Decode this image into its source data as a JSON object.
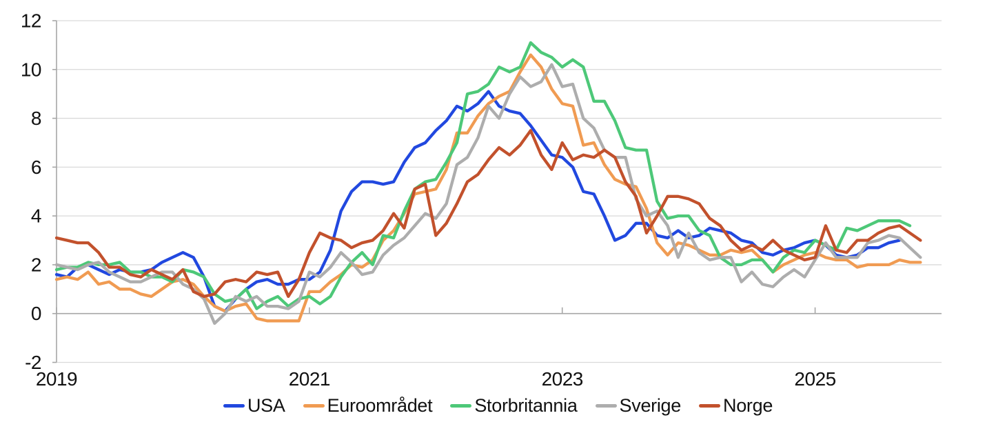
{
  "figure": {
    "background": "#ffffff",
    "grid_color": "#d9d9d9",
    "axis_color": "#a6a6a6",
    "text_color": "#111111"
  },
  "chart_data": {
    "type": "line",
    "title": "",
    "xlabel": "",
    "ylabel": "",
    "x_unit": "month",
    "x_start": "2019-01",
    "x_total_months": 84,
    "ylim": [
      -2,
      12
    ],
    "grid": "horizontal",
    "zero_axis_emphasized": true,
    "legend_position": "bottom-center",
    "y_ticks": [
      -2,
      0,
      2,
      4,
      6,
      8,
      10,
      12
    ],
    "x_ticks": [
      {
        "label": "2019",
        "month": 0
      },
      {
        "label": "2021",
        "month": 24
      },
      {
        "label": "2023",
        "month": 48
      },
      {
        "label": "2025",
        "month": 72
      }
    ],
    "series": [
      {
        "name": "USA",
        "slug": "usa",
        "color": "#2148df",
        "values": [
          1.6,
          1.5,
          1.9,
          2.0,
          1.8,
          1.6,
          1.8,
          1.7,
          1.7,
          1.8,
          2.1,
          2.3,
          2.5,
          2.3,
          1.5,
          0.3,
          0.1,
          0.6,
          1.0,
          1.3,
          1.4,
          1.2,
          1.2,
          1.4,
          1.4,
          1.7,
          2.6,
          4.2,
          5.0,
          5.4,
          5.4,
          5.3,
          5.4,
          6.2,
          6.8,
          7.0,
          7.5,
          7.9,
          8.5,
          8.3,
          8.6,
          9.1,
          8.5,
          8.3,
          8.2,
          7.7,
          7.1,
          6.5,
          6.4,
          6.0,
          5.0,
          4.9,
          4.0,
          3.0,
          3.2,
          3.7,
          3.7,
          3.2,
          3.1,
          3.4,
          3.1,
          3.2,
          3.5,
          3.4,
          3.3,
          3.0,
          2.9,
          2.5,
          2.4,
          2.6,
          2.7,
          2.9,
          3.0,
          2.8,
          2.4,
          2.3,
          2.4,
          2.7,
          2.7,
          2.9,
          3.0
        ]
      },
      {
        "name": "Euroområdet",
        "slug": "euroomradet",
        "color": "#f09b52",
        "values": [
          1.4,
          1.5,
          1.4,
          1.7,
          1.2,
          1.3,
          1.0,
          1.0,
          0.8,
          0.7,
          1.0,
          1.3,
          1.4,
          1.2,
          0.7,
          0.3,
          0.1,
          0.3,
          0.4,
          -0.2,
          -0.3,
          -0.3,
          -0.3,
          -0.3,
          0.9,
          0.9,
          1.3,
          1.6,
          2.0,
          1.9,
          2.2,
          3.0,
          3.4,
          4.1,
          4.9,
          5.0,
          5.1,
          5.9,
          7.4,
          7.4,
          8.1,
          8.6,
          8.9,
          9.1,
          9.9,
          10.6,
          10.1,
          9.2,
          8.6,
          8.5,
          6.9,
          7.0,
          6.1,
          5.5,
          5.3,
          5.2,
          4.3,
          2.9,
          2.4,
          2.9,
          2.8,
          2.6,
          2.4,
          2.4,
          2.6,
          2.5,
          2.6,
          2.2,
          1.7,
          2.0,
          2.2,
          2.4,
          2.5,
          2.3,
          2.2,
          2.2,
          1.9,
          2.0,
          2.0,
          2.0,
          2.2,
          2.1,
          2.1
        ]
      },
      {
        "name": "Storbritannia",
        "slug": "storbritannia",
        "color": "#4dc878",
        "values": [
          1.8,
          1.9,
          1.9,
          2.1,
          2.0,
          2.0,
          2.1,
          1.7,
          1.7,
          1.5,
          1.5,
          1.3,
          1.8,
          1.7,
          1.5,
          0.8,
          0.5,
          0.6,
          1.0,
          0.2,
          0.5,
          0.7,
          0.3,
          0.6,
          0.7,
          0.4,
          0.7,
          1.5,
          2.1,
          2.5,
          2.0,
          3.2,
          3.1,
          4.2,
          5.1,
          5.4,
          5.5,
          6.2,
          7.0,
          9.0,
          9.1,
          9.4,
          10.1,
          9.9,
          10.1,
          11.1,
          10.7,
          10.5,
          10.1,
          10.4,
          10.1,
          8.7,
          8.7,
          7.9,
          6.8,
          6.7,
          6.7,
          4.6,
          3.9,
          4.0,
          4.0,
          3.4,
          3.2,
          2.3,
          2.0,
          2.0,
          2.2,
          2.2,
          1.7,
          2.3,
          2.6,
          2.5,
          3.0,
          2.8,
          2.6,
          3.5,
          3.4,
          3.6,
          3.8,
          3.8,
          3.8,
          3.6
        ]
      },
      {
        "name": "Sverige",
        "slug": "sverige",
        "color": "#adadad",
        "values": [
          2.0,
          1.9,
          1.8,
          2.0,
          2.1,
          1.7,
          1.5,
          1.3,
          1.3,
          1.5,
          1.7,
          1.7,
          1.2,
          1.0,
          0.6,
          -0.4,
          0.0,
          0.7,
          0.5,
          0.7,
          0.3,
          0.3,
          0.2,
          0.5,
          1.7,
          1.5,
          1.9,
          2.5,
          2.1,
          1.6,
          1.7,
          2.4,
          2.8,
          3.1,
          3.6,
          4.1,
          3.9,
          4.5,
          6.1,
          6.4,
          7.2,
          8.5,
          8.0,
          9.0,
          9.7,
          9.3,
          9.5,
          10.2,
          9.3,
          9.4,
          8.0,
          7.6,
          6.7,
          6.4,
          6.4,
          4.7,
          4.0,
          4.2,
          3.6,
          2.3,
          3.3,
          2.5,
          2.2,
          2.3,
          2.3,
          1.3,
          1.7,
          1.2,
          1.1,
          1.5,
          1.8,
          1.5,
          2.2,
          2.9,
          2.3,
          2.3,
          2.3,
          2.9,
          3.0,
          3.2,
          3.1,
          2.7,
          2.3
        ]
      },
      {
        "name": "Norge",
        "slug": "norge",
        "color": "#c2512c",
        "values": [
          3.1,
          3.0,
          2.9,
          2.9,
          2.5,
          1.9,
          1.9,
          1.6,
          1.5,
          1.8,
          1.6,
          1.4,
          1.8,
          0.9,
          0.7,
          0.8,
          1.3,
          1.4,
          1.3,
          1.7,
          1.6,
          1.7,
          0.7,
          1.4,
          2.5,
          3.3,
          3.1,
          3.0,
          2.7,
          2.9,
          3.0,
          3.4,
          4.1,
          3.5,
          5.1,
          5.3,
          3.2,
          3.7,
          4.5,
          5.4,
          5.7,
          6.3,
          6.8,
          6.5,
          6.9,
          7.5,
          6.5,
          5.9,
          7.0,
          6.3,
          6.5,
          6.4,
          6.7,
          6.4,
          5.4,
          4.8,
          3.3,
          4.0,
          4.8,
          4.8,
          4.7,
          4.5,
          3.9,
          3.6,
          3.0,
          2.6,
          2.8,
          2.6,
          3.0,
          2.6,
          2.4,
          2.2,
          2.3,
          3.6,
          2.6,
          2.5,
          3.0,
          3.0,
          3.3,
          3.5,
          3.6,
          3.3,
          3.0
        ]
      }
    ]
  }
}
